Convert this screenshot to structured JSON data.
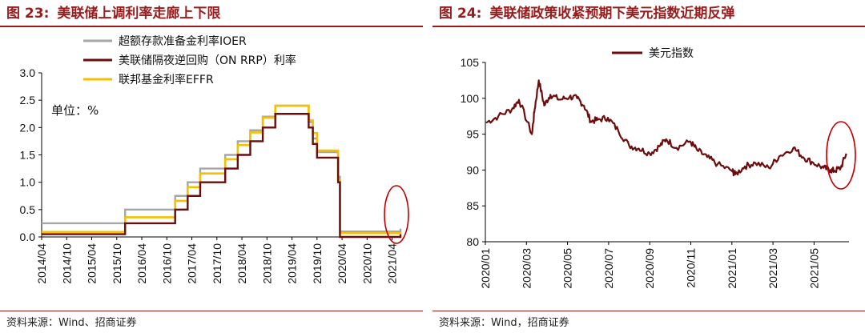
{
  "left": {
    "fig_num": "图 23:",
    "fig_title": "美联储上调利率走廊上下限",
    "source": "资料来源：Wind、招商证券"
  },
  "right": {
    "fig_num": "图 24:",
    "fig_title": "美联储政策收紧预期下美元指数近期反弹",
    "source": "资料来源：Wind，招商证券"
  },
  "chart_data": [
    {
      "type": "line",
      "unit_label": "单位：%",
      "ylim": [
        0,
        3.0
      ],
      "yticks": [
        "0.0",
        "0.5",
        "1.0",
        "1.5",
        "2.0",
        "2.5",
        "3.0"
      ],
      "xticks": [
        "2014/04",
        "2014/10",
        "2015/04",
        "2015/10",
        "2016/04",
        "2016/10",
        "2017/04",
        "2017/10",
        "2018/04",
        "2018/10",
        "2019/04",
        "2019/10",
        "2020/04",
        "2020/10",
        "2021/04"
      ],
      "x_range": [
        "2014/04",
        "2021/06"
      ],
      "grid": false,
      "legend_position": "top",
      "series": [
        {
          "name": "超额存款准备金利率IOER",
          "color": "#a6a6a6",
          "x": [
            "2014/04",
            "2015/12",
            "2016/12",
            "2017/03",
            "2017/06",
            "2017/12",
            "2018/03",
            "2018/06",
            "2018/09",
            "2018/12",
            "2019/08",
            "2019/09",
            "2019/10",
            "2020/03a",
            "2020/03b",
            "2021/06"
          ],
          "y": [
            0.25,
            0.5,
            0.75,
            1.0,
            1.25,
            1.5,
            1.75,
            1.95,
            2.2,
            2.4,
            2.1,
            1.8,
            1.55,
            1.1,
            0.1,
            0.15
          ]
        },
        {
          "name": "美联储隔夜逆回购（ON RRP）利率",
          "color": "#6b0d0d",
          "x": [
            "2014/04",
            "2015/12",
            "2016/12",
            "2017/03",
            "2017/06",
            "2017/12",
            "2018/03",
            "2018/06",
            "2018/09",
            "2018/12",
            "2019/08",
            "2019/09",
            "2019/10",
            "2020/03a",
            "2020/03b",
            "2021/06"
          ],
          "y": [
            0.05,
            0.25,
            0.5,
            0.75,
            1.0,
            1.25,
            1.5,
            1.75,
            2.0,
            2.25,
            2.0,
            1.7,
            1.45,
            1.0,
            0.0,
            0.05
          ]
        },
        {
          "name": "联邦基金利率EFFR",
          "color": "#f5c000",
          "x": [
            "2014/04",
            "2015/12",
            "2016/12",
            "2017/03",
            "2017/06",
            "2017/12",
            "2018/03",
            "2018/06",
            "2018/09",
            "2018/12",
            "2019/08",
            "2019/09",
            "2019/10",
            "2020/03a",
            "2020/03b",
            "2021/06"
          ],
          "y": [
            0.09,
            0.36,
            0.66,
            0.91,
            1.16,
            1.42,
            1.68,
            1.91,
            2.18,
            2.4,
            2.13,
            1.9,
            1.58,
            1.05,
            0.07,
            0.08
          ]
        }
      ]
    },
    {
      "type": "line",
      "ylim": [
        80,
        105
      ],
      "yticks": [
        "80",
        "85",
        "90",
        "95",
        "100",
        "105"
      ],
      "xticks": [
        "2020/01",
        "2020/03",
        "2020/05",
        "2020/07",
        "2020/09",
        "2020/11",
        "2021/01",
        "2021/03",
        "2021/05"
      ],
      "x_range": [
        "2020/01",
        "2021/06"
      ],
      "grid": false,
      "legend_position": "top",
      "series": [
        {
          "name": "美元指数",
          "color": "#6b0d0d",
          "x": [
            "2020/01/02",
            "2020/01/20",
            "2020/02/10",
            "2020/02/20",
            "2020/03/09",
            "2020/03/13",
            "2020/03/19",
            "2020/03/27",
            "2020/04/06",
            "2020/04/20",
            "2020/05/04",
            "2020/05/15",
            "2020/05/25",
            "2020/06/05",
            "2020/06/15",
            "2020/06/30",
            "2020/07/15",
            "2020/07/31",
            "2020/08/15",
            "2020/08/31",
            "2020/09/15",
            "2020/09/25",
            "2020/10/10",
            "2020/10/30",
            "2020/11/10",
            "2020/11/25",
            "2020/12/10",
            "2020/12/31",
            "2021/01/06",
            "2021/01/20",
            "2021/02/05",
            "2021/02/25",
            "2021/03/10",
            "2021/03/31",
            "2021/04/15",
            "2021/04/30",
            "2021/05/15",
            "2021/05/25",
            "2021/06/01",
            "2021/06/10",
            "2021/06/18"
          ],
          "y": [
            96.6,
            97.5,
            98.5,
            99.8,
            95.0,
            98.5,
            102.5,
            99.0,
            100.5,
            99.8,
            100.2,
            100.0,
            99.0,
            96.8,
            97.0,
            97.3,
            95.5,
            93.4,
            93.0,
            92.3,
            93.3,
            94.3,
            93.1,
            94.0,
            92.8,
            91.8,
            90.8,
            89.9,
            89.4,
            90.5,
            91.0,
            90.3,
            91.9,
            93.1,
            91.8,
            91.0,
            90.3,
            90.0,
            89.9,
            90.3,
            92.3
          ]
        }
      ]
    }
  ]
}
